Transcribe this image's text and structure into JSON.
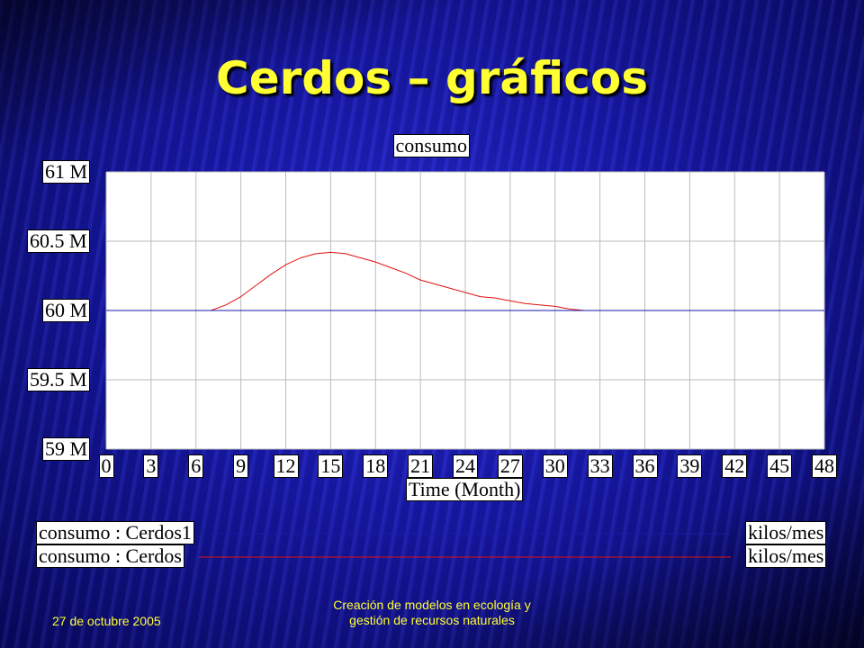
{
  "slide": {
    "title": "Cerdos – gráficos",
    "date": "27 de octubre 2005",
    "footer": [
      "Creación de modelos en ecología y",
      "gestión de recursos naturales"
    ]
  },
  "chart_data": {
    "type": "line",
    "title": "consumo",
    "x_label": "Time (Month)",
    "x": [
      0,
      1,
      2,
      3,
      4,
      5,
      6,
      7,
      8,
      9,
      10,
      11,
      12,
      13,
      14,
      15,
      16,
      17,
      18,
      19,
      20,
      21,
      22,
      23,
      24,
      25,
      26,
      27,
      28,
      29,
      30,
      31,
      32,
      33,
      34,
      35,
      36,
      37,
      38,
      39,
      40,
      41,
      42,
      43,
      44,
      45,
      46,
      47,
      48
    ],
    "xlim": [
      0,
      48
    ],
    "xticks": [
      0,
      3,
      6,
      9,
      12,
      15,
      18,
      21,
      24,
      27,
      30,
      33,
      36,
      39,
      42,
      45,
      48
    ],
    "ylim": [
      59000000,
      61000000
    ],
    "yticks": [
      {
        "value": 59000000,
        "label": "59 M"
      },
      {
        "value": 59500000,
        "label": "59.5 M"
      },
      {
        "value": 60000000,
        "label": "60 M"
      },
      {
        "value": 60500000,
        "label": "60.5 M"
      },
      {
        "value": 61000000,
        "label": "61 M"
      }
    ],
    "grid": true,
    "series": [
      {
        "name": "consumo : Cerdos1",
        "unit": "kilos/mes",
        "color": "#1a1aa8",
        "values": [
          60000000,
          60000000,
          60000000,
          60000000,
          60000000,
          60000000,
          60000000,
          60000000,
          60000000,
          60000000,
          60000000,
          60000000,
          60000000,
          60000000,
          60000000,
          60000000,
          60000000,
          60000000,
          60000000,
          60000000,
          60000000,
          60000000,
          60000000,
          60000000,
          60000000,
          60000000,
          60000000,
          60000000,
          60000000,
          60000000,
          60000000,
          60000000,
          60000000,
          60000000,
          60000000,
          60000000,
          60000000,
          60000000,
          60000000,
          60000000,
          60000000,
          60000000,
          60000000,
          60000000,
          60000000,
          60000000,
          60000000,
          60000000,
          60000000
        ]
      },
      {
        "name": "consumo : Cerdos",
        "unit": "kilos/mes",
        "color": "#e01010",
        "values": [
          60000000,
          60000000,
          60000000,
          60000000,
          60000000,
          60000000,
          60000000,
          60000000,
          60040000,
          60100000,
          60180000,
          60260000,
          60330000,
          60380000,
          60410000,
          60420000,
          60410000,
          60380000,
          60350000,
          60310000,
          60270000,
          60220000,
          60190000,
          60160000,
          60130000,
          60100000,
          60090000,
          60070000,
          60050000,
          60040000,
          60030000,
          60010000,
          60000000,
          60000000,
          60000000,
          60000000,
          60000000,
          60000000,
          60000000,
          60000000,
          60000000,
          60000000,
          60000000,
          60000000,
          60000000,
          60000000,
          60000000,
          60000000,
          60000000
        ]
      }
    ]
  }
}
